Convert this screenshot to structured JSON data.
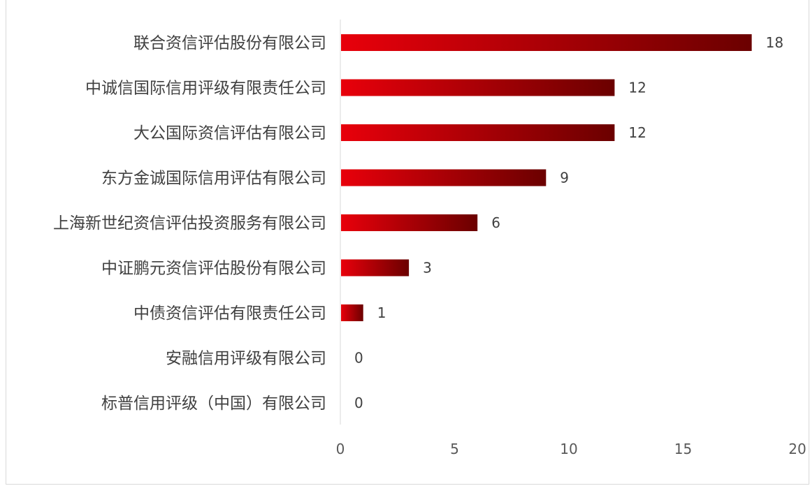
{
  "chart_data": {
    "type": "bar",
    "orientation": "horizontal",
    "title": "",
    "xlabel": "",
    "ylabel": "",
    "categories": [
      "联合资信评估股份有限公司",
      "中诚信国际信用评级有限责任公司",
      "大公国际资信评估有限公司",
      "东方金诚国际信用评估有限公司",
      "上海新世纪资信评估投资服务有限公司",
      "中证鹏元资信评估股份有限公司",
      "中债资信评估有限责任公司",
      "安融信用评级有限公司",
      "标普信用评级（中国）有限公司"
    ],
    "values": [
      18,
      12,
      12,
      9,
      6,
      3,
      1,
      0,
      0
    ],
    "data_labels": [
      "18",
      "12",
      "12",
      "9",
      "6",
      "3",
      "1",
      "0",
      "0"
    ],
    "xlim": [
      0,
      20
    ],
    "x_ticks": [
      "0",
      "5",
      "10",
      "15",
      "20"
    ],
    "grid": false,
    "legend": "none",
    "bar_gradient": [
      "#e8000b",
      "#6b0000"
    ]
  }
}
